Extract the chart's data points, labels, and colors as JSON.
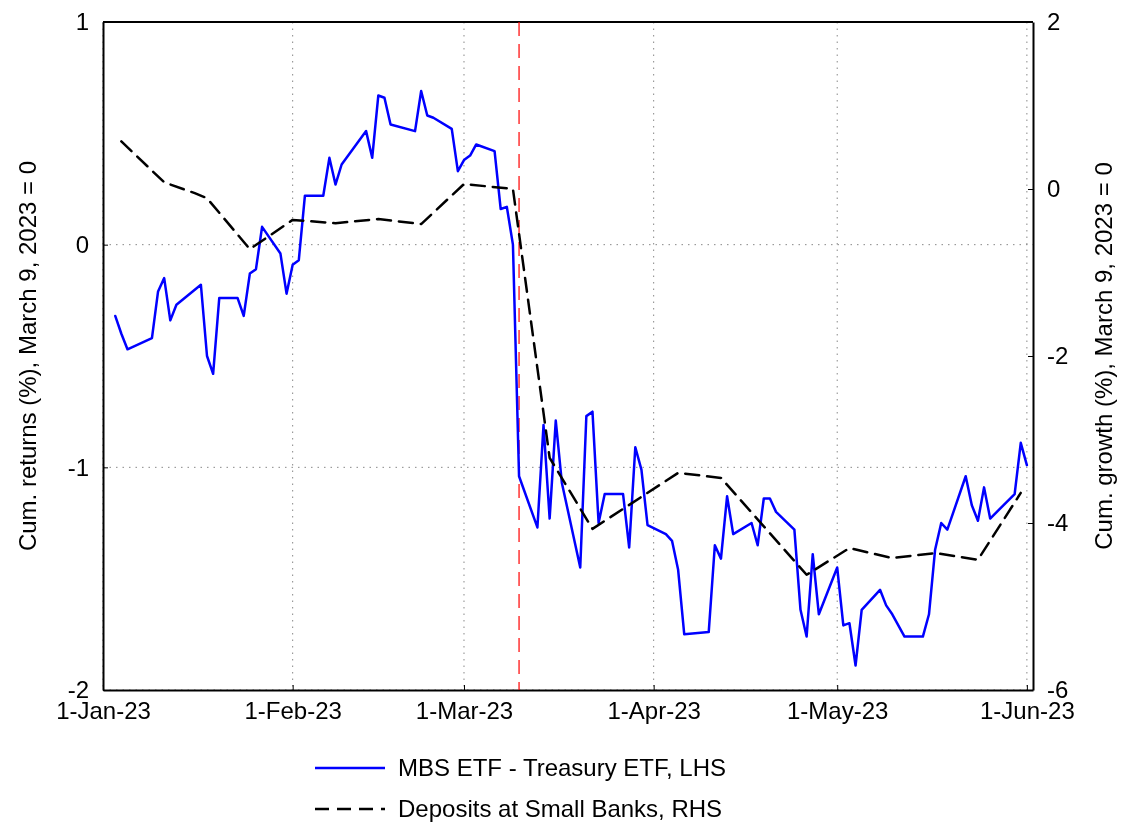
{
  "chart_data": {
    "type": "line",
    "ylabel": "Cum. returns (%), March 9, 2023 = 0",
    "y2label": "Cum. growth (%), March 9, 2023 = 0",
    "xlim": [
      "2023-01-01",
      "2023-06-02"
    ],
    "xticks": [
      {
        "value": "2023-01-01",
        "label": "1-Jan-23"
      },
      {
        "value": "2023-02-01",
        "label": "1-Feb-23"
      },
      {
        "value": "2023-03-01",
        "label": "1-Mar-23"
      },
      {
        "value": "2023-04-01",
        "label": "1-Apr-23"
      },
      {
        "value": "2023-05-01",
        "label": "1-May-23"
      },
      {
        "value": "2023-06-01",
        "label": "1-Jun-23"
      }
    ],
    "ylim": [
      -2,
      1
    ],
    "yticks": [
      -2,
      -1,
      0,
      1
    ],
    "y2lim": [
      -6,
      2
    ],
    "y2ticks": [
      -6,
      -4,
      -2,
      0,
      2
    ],
    "grid": true,
    "legend": "bottom",
    "ref_lines": [
      {
        "axis": "x",
        "value": "2023-03-10",
        "color": "#ff0000",
        "line_style": "dashed"
      }
    ],
    "series": [
      {
        "name": "MBS ETF - Treasury ETF, LHS",
        "color": "#0000ff",
        "line_style": "solid",
        "x": [
          "2023-01-03",
          "2023-01-04",
          "2023-01-05",
          "2023-01-09",
          "2023-01-10",
          "2023-01-11",
          "2023-01-12",
          "2023-01-13",
          "2023-01-17",
          "2023-01-18",
          "2023-01-19",
          "2023-01-20",
          "2023-01-23",
          "2023-01-24",
          "2023-01-25",
          "2023-01-26",
          "2023-01-27",
          "2023-01-30",
          "2023-01-31",
          "2023-02-01",
          "2023-02-02",
          "2023-02-03",
          "2023-02-06",
          "2023-02-07",
          "2023-02-08",
          "2023-02-09",
          "2023-02-13",
          "2023-02-14",
          "2023-02-15",
          "2023-02-16",
          "2023-02-17",
          "2023-02-21",
          "2023-02-22",
          "2023-02-23",
          "2023-02-24",
          "2023-02-27",
          "2023-02-28",
          "2023-03-01",
          "2023-03-02",
          "2023-03-03",
          "2023-03-06",
          "2023-03-07",
          "2023-03-08",
          "2023-03-09",
          "2023-03-10",
          "2023-03-13",
          "2023-03-14",
          "2023-03-15",
          "2023-03-16",
          "2023-03-17",
          "2023-03-20",
          "2023-03-21",
          "2023-03-22",
          "2023-03-23",
          "2023-03-24",
          "2023-03-27",
          "2023-03-28",
          "2023-03-29",
          "2023-03-30",
          "2023-03-31",
          "2023-04-03",
          "2023-04-04",
          "2023-04-05",
          "2023-04-06",
          "2023-04-10",
          "2023-04-11",
          "2023-04-12",
          "2023-04-13",
          "2023-04-14",
          "2023-04-17",
          "2023-04-18",
          "2023-04-19",
          "2023-04-20",
          "2023-04-21",
          "2023-04-24",
          "2023-04-25",
          "2023-04-26",
          "2023-04-27",
          "2023-04-28",
          "2023-05-01",
          "2023-05-02",
          "2023-05-03",
          "2023-05-04",
          "2023-05-05",
          "2023-05-08",
          "2023-05-09",
          "2023-05-10",
          "2023-05-12",
          "2023-05-15",
          "2023-05-16",
          "2023-05-17",
          "2023-05-18",
          "2023-05-19",
          "2023-05-22",
          "2023-05-23",
          "2023-05-24",
          "2023-05-25",
          "2023-05-26",
          "2023-05-30",
          "2023-05-31",
          "2023-06-01"
        ],
        "values": [
          -0.32,
          -0.4,
          -0.47,
          -0.42,
          -0.21,
          -0.15,
          -0.34,
          -0.27,
          -0.18,
          -0.5,
          -0.58,
          -0.24,
          -0.24,
          -0.32,
          -0.13,
          -0.11,
          0.08,
          -0.04,
          -0.22,
          -0.09,
          -0.07,
          0.22,
          0.22,
          0.39,
          0.27,
          0.36,
          0.51,
          0.39,
          0.67,
          0.66,
          0.54,
          0.51,
          0.69,
          0.58,
          0.57,
          0.52,
          0.33,
          0.38,
          0.4,
          0.45,
          0.42,
          0.16,
          0.17,
          0,
          -1.04,
          -1.27,
          -0.81,
          -1.23,
          -0.79,
          -1.07,
          -1.45,
          -0.77,
          -0.75,
          -1.25,
          -1.12,
          -1.12,
          -1.36,
          -0.91,
          -1.01,
          -1.26,
          -1.3,
          -1.33,
          -1.46,
          -1.75,
          -1.74,
          -1.35,
          -1.41,
          -1.13,
          -1.3,
          -1.25,
          -1.35,
          -1.14,
          -1.14,
          -1.2,
          -1.28,
          -1.64,
          -1.76,
          -1.39,
          -1.66,
          -1.45,
          -1.71,
          -1.7,
          -1.89,
          -1.64,
          -1.55,
          -1.62,
          -1.66,
          -1.76,
          -1.76,
          -1.66,
          -1.37,
          -1.25,
          -1.28,
          -1.04,
          -1.17,
          -1.24,
          -1.09,
          -1.23,
          -1.12,
          -0.89,
          -0.99
        ]
      },
      {
        "name": "Deposits at Small Banks, RHS",
        "color": "#000000",
        "line_style": "dashed",
        "axis": "y2",
        "x": [
          "2023-01-04",
          "2023-01-11",
          "2023-01-16",
          "2023-01-18",
          "2023-01-25",
          "2023-02-01",
          "2023-02-08",
          "2023-02-15",
          "2023-02-22",
          "2023-03-01",
          "2023-03-09",
          "2023-03-15",
          "2023-03-22",
          "2023-04-05",
          "2023-04-12",
          "2023-04-26",
          "2023-05-03",
          "2023-05-10",
          "2023-05-17",
          "2023-05-24",
          "2023-05-31"
        ],
        "values": [
          0.57,
          0.08,
          -0.05,
          -0.11,
          -0.72,
          -0.37,
          -0.41,
          -0.36,
          -0.42,
          0.06,
          0,
          -3.22,
          -4.07,
          -3.4,
          -3.46,
          -4.62,
          -4.3,
          -4.42,
          -4.36,
          -4.44,
          -3.64
        ]
      }
    ]
  }
}
